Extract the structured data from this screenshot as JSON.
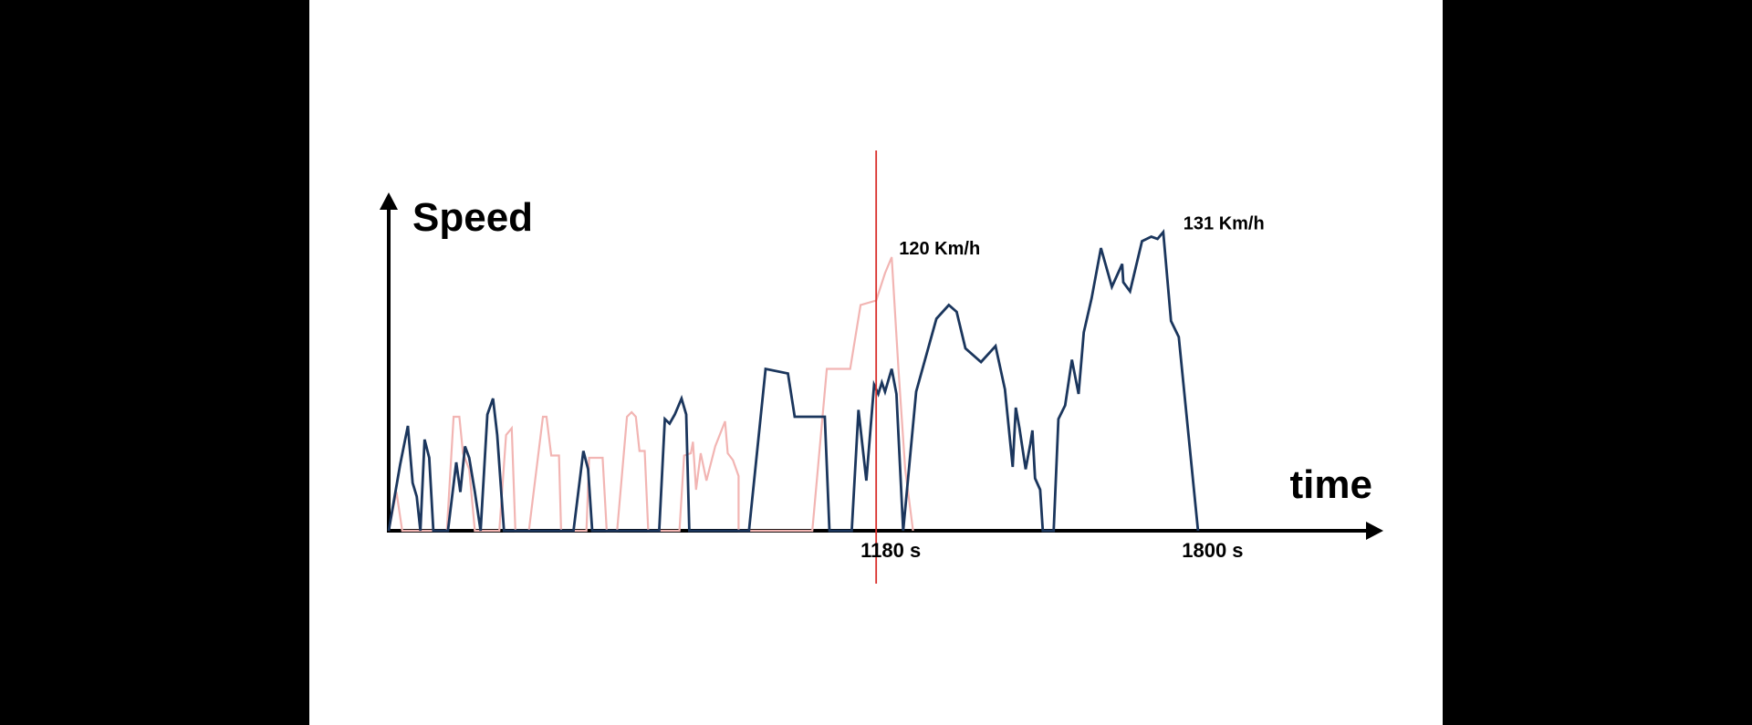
{
  "chart_data": {
    "type": "line",
    "y_label": "Speed",
    "x_label": "time",
    "xlim": [
      241,
      2150
    ],
    "ylim": [
      0,
      148
    ],
    "xticks": [
      {
        "value": 1180,
        "label": "1180 s"
      },
      {
        "value": 1800,
        "label": "1800 s"
      }
    ],
    "grid": false,
    "vline": {
      "x": 1180,
      "color": "#d9302c"
    },
    "series": [
      {
        "color": "#f2b5b3",
        "x": [
          241,
          256,
          267,
          353,
          366,
          377,
          384,
          396,
          407,
          454,
          467,
          478,
          485,
          511,
          538,
          545,
          554,
          569,
          573,
          622,
          627,
          653,
          661,
          681,
          700,
          709,
          717,
          724,
          734,
          741,
          801,
          810,
          823,
          827,
          833,
          842,
          853,
          870,
          889,
          894,
          904,
          915,
          915,
          1057,
          1085,
          1130,
          1150,
          1180,
          1197,
          1210,
          1223,
          1236,
          1251
        ],
        "values": [
          0,
          17,
          0,
          0,
          50,
          50,
          34,
          27,
          0,
          0,
          42,
          45,
          0,
          0,
          50,
          50,
          33,
          33,
          0,
          0,
          32,
          32,
          0,
          0,
          50,
          52,
          50,
          35,
          35,
          0,
          0,
          33,
          34,
          39,
          18,
          34,
          22,
          37,
          48,
          34,
          31,
          24,
          0,
          0,
          71,
          71,
          99,
          101,
          113,
          120,
          71,
          27,
          0
        ]
      },
      {
        "color": "#1b365d",
        "x": [
          241,
          263,
          278,
          287,
          295,
          302,
          310,
          319,
          327,
          355,
          371,
          379,
          388,
          396,
          407,
          418,
          431,
          442,
          450,
          463,
          597,
          603,
          616,
          625,
          633,
          762,
          773,
          782,
          792,
          805,
          814,
          820,
          935,
          967,
          1010,
          1023,
          1081,
          1090,
          1133,
          1146,
          1161,
          1176,
          1184,
          1191,
          1197,
          1210,
          1219,
          1232,
          1257,
          1296,
          1320,
          1335,
          1352,
          1382,
          1410,
          1428,
          1443,
          1449,
          1456,
          1468,
          1477,
          1481,
          1486,
          1496,
          1501,
          1522,
          1531,
          1544,
          1557,
          1570,
          1580,
          1595,
          1613,
          1634,
          1654,
          1656,
          1669,
          1692,
          1710,
          1722,
          1733,
          1748,
          1763,
          1800
        ],
        "values": [
          0,
          29,
          46,
          21,
          15,
          0,
          40,
          32,
          0,
          0,
          30,
          17,
          37,
          32,
          17,
          0,
          51,
          58,
          42,
          0,
          0,
          11,
          35,
          27,
          0,
          0,
          49,
          47,
          51,
          58,
          51,
          0,
          0,
          71,
          69,
          50,
          50,
          0,
          0,
          53,
          22,
          64,
          60,
          65,
          61,
          71,
          60,
          0,
          61,
          93,
          99,
          96,
          80,
          74,
          81,
          62,
          28,
          54,
          45,
          27,
          38,
          44,
          23,
          18,
          0,
          0,
          49,
          55,
          75,
          60,
          87,
          102,
          124,
          107,
          117,
          109,
          105,
          127,
          129,
          128,
          131,
          92,
          85,
          0
        ]
      }
    ],
    "annotations": [
      {
        "text": "120 Km/h",
        "x": 1210,
        "y": 120
      },
      {
        "text": "131 Km/h",
        "x": 1733,
        "y": 131
      }
    ]
  }
}
